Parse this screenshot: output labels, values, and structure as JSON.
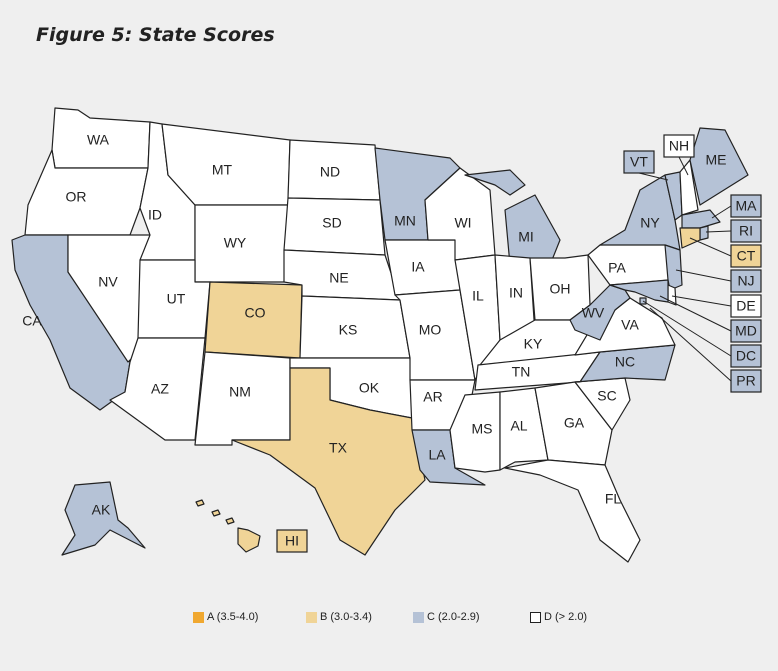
{
  "title": "Figure 5: State Scores",
  "colors": {
    "A": "#f0a830",
    "B": "#f0d497",
    "C": "#b5c2d6",
    "D": "#ffffff"
  },
  "legend": [
    {
      "key": "A",
      "label": "A (3.5-4.0)"
    },
    {
      "key": "B",
      "label": "B (3.0-3.4)"
    },
    {
      "key": "C",
      "label": "C (2.0-2.9)"
    },
    {
      "key": "D",
      "label": "D (> 2.0)"
    }
  ],
  "states": {
    "WA": "D",
    "OR": "D",
    "CA": "C",
    "NV": "D",
    "ID": "D",
    "MT": "D",
    "WY": "D",
    "UT": "D",
    "AZ": "D",
    "CO": "B",
    "NM": "D",
    "ND": "D",
    "SD": "D",
    "NE": "D",
    "KS": "D",
    "OK": "D",
    "TX": "B",
    "MN": "C",
    "IA": "D",
    "MO": "D",
    "AR": "D",
    "LA": "C",
    "WI": "D",
    "IL": "D",
    "MI": "C",
    "IN": "D",
    "OH": "D",
    "KY": "D",
    "TN": "D",
    "MS": "D",
    "AL": "D",
    "GA": "D",
    "FL": "D",
    "SC": "D",
    "NC": "C",
    "VA": "D",
    "WV": "C",
    "PA": "D",
    "NY": "C",
    "ME": "C",
    "VT": "C",
    "NH": "D",
    "MA": "C",
    "RI": "C",
    "CT": "B",
    "NJ": "C",
    "DE": "D",
    "MD": "C",
    "DC": "C",
    "PR": "C",
    "AK": "C",
    "HI": "B"
  }
}
